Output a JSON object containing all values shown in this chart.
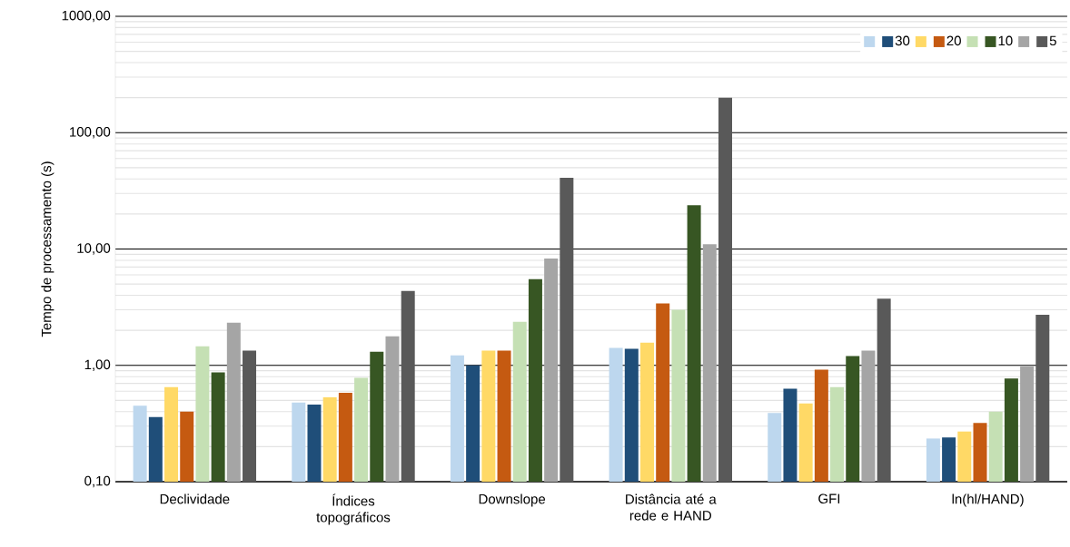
{
  "chart_data": {
    "type": "bar",
    "ylabel": "Tempo de processamento (s)",
    "categories": [
      "Declividade",
      "Índices topográficos",
      "Downslope",
      "Distância até a rede e HAND",
      "GFI",
      "ln(hl/HAND)"
    ],
    "series": [
      {
        "color": "#bdd7ee",
        "values": [
          0.45,
          0.48,
          1.22,
          1.41,
          0.39,
          0.235
        ]
      },
      {
        "name": "30",
        "color": "#1f4e79",
        "values": [
          0.36,
          0.46,
          1.0,
          1.39,
          0.63,
          0.24
        ]
      },
      {
        "color": "#ffd966",
        "values": [
          0.65,
          0.53,
          1.34,
          1.57,
          0.47,
          0.27
        ]
      },
      {
        "name": "20",
        "color": "#c55a11",
        "values": [
          0.4,
          0.58,
          1.34,
          3.4,
          0.92,
          0.32
        ]
      },
      {
        "color": "#c5e0b4",
        "values": [
          1.46,
          0.78,
          2.37,
          3.0,
          0.65,
          0.4
        ]
      },
      {
        "name": "10",
        "color": "#375623",
        "values": [
          0.87,
          1.31,
          5.5,
          23.8,
          1.2,
          0.77
        ]
      },
      {
        "color": "#a5a5a5",
        "values": [
          2.33,
          1.78,
          8.3,
          11.0,
          1.34,
          0.98
        ]
      },
      {
        "name": "5",
        "color": "#595959",
        "values": [
          1.34,
          4.35,
          41,
          200,
          3.75,
          2.72
        ]
      }
    ],
    "log": "y",
    "ylim": [
      0.1,
      1000
    ],
    "yticks": [
      {
        "value": 0.1,
        "label": "0,10"
      },
      {
        "value": 1,
        "label": "1,00"
      },
      {
        "value": 10,
        "label": "10,00"
      },
      {
        "value": 100,
        "label": "100,00"
      },
      {
        "value": 1000,
        "label": "1000,00"
      }
    ],
    "grid": true,
    "legend": "top right"
  }
}
